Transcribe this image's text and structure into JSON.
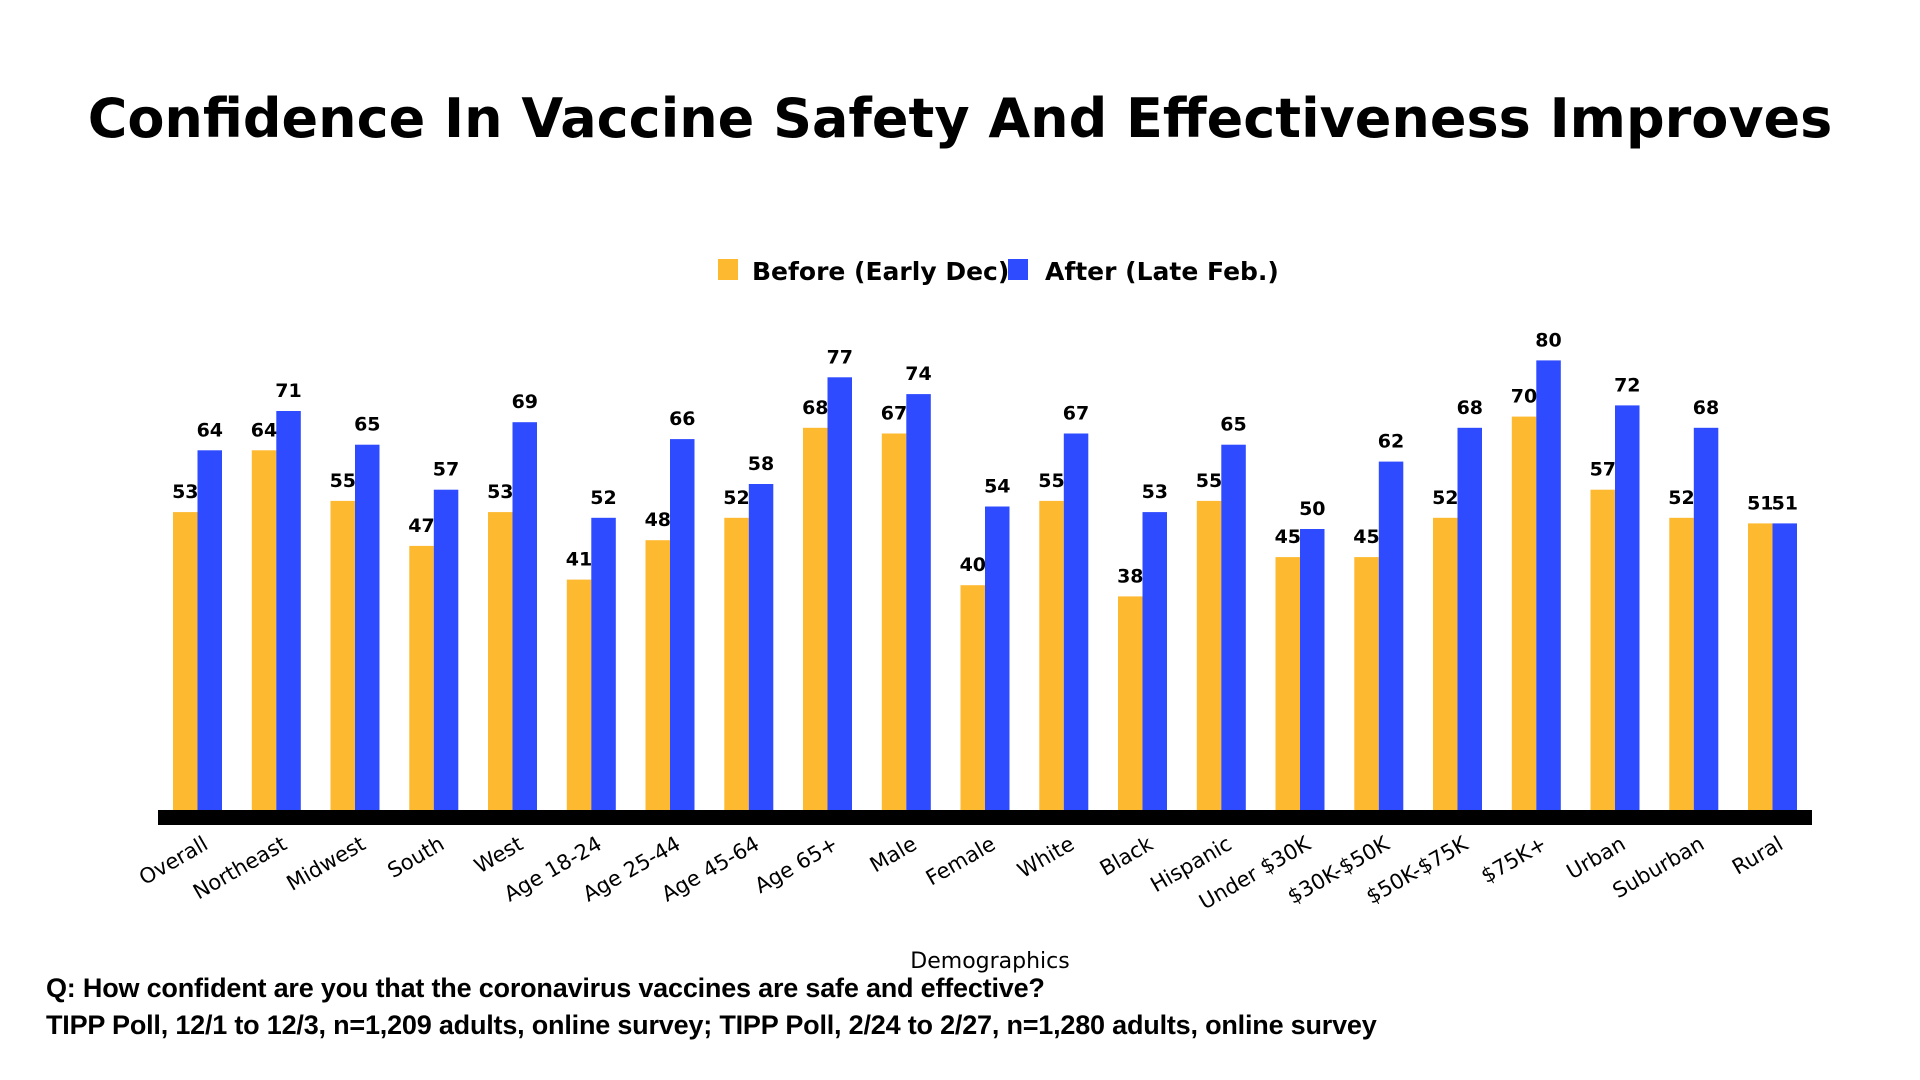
{
  "chart_data": {
    "type": "bar",
    "title": "Confidence In Vaccine Safety And Effectiveness Improves",
    "xlabel": "Demographics",
    "ylabel": "",
    "ylim": [
      0,
      80
    ],
    "grid": false,
    "legend_position": "top-center",
    "categories": [
      "Overall",
      "Northeast",
      "Midwest",
      "South",
      "West",
      "Age 18-24",
      "Age 25-44",
      "Age 45-64",
      "Age 65+",
      "Male",
      "Female",
      "White",
      "Black",
      "Hispanic",
      "Under $30K",
      "$30K-$50K",
      "$50K-$75K",
      "$75K+",
      "Urban",
      "Suburban",
      "Rural"
    ],
    "series": [
      {
        "name": "Before (Early Dec)",
        "color": "#FDB92F",
        "values": [
          53,
          64,
          55,
          47,
          53,
          41,
          48,
          52,
          68,
          67,
          40,
          55,
          38,
          55,
          45,
          45,
          52,
          70,
          57,
          52,
          51
        ]
      },
      {
        "name": "After (Late Feb.)",
        "color": "#2E4BFF",
        "values": [
          64,
          71,
          65,
          57,
          69,
          52,
          66,
          58,
          77,
          74,
          54,
          67,
          53,
          65,
          50,
          62,
          68,
          80,
          72,
          68,
          51
        ]
      }
    ]
  },
  "footer": {
    "question": "Q:  How confident are you that the coronavirus vaccines are safe and effective?",
    "source": "TIPP Poll, 12/1 to 12/3, n=1,209 adults, online survey; TIPP Poll, 2/24 to 2/27, n=1,280 adults, online survey"
  },
  "colors": {
    "axis": "#000000",
    "background": "#FFFFFF"
  }
}
